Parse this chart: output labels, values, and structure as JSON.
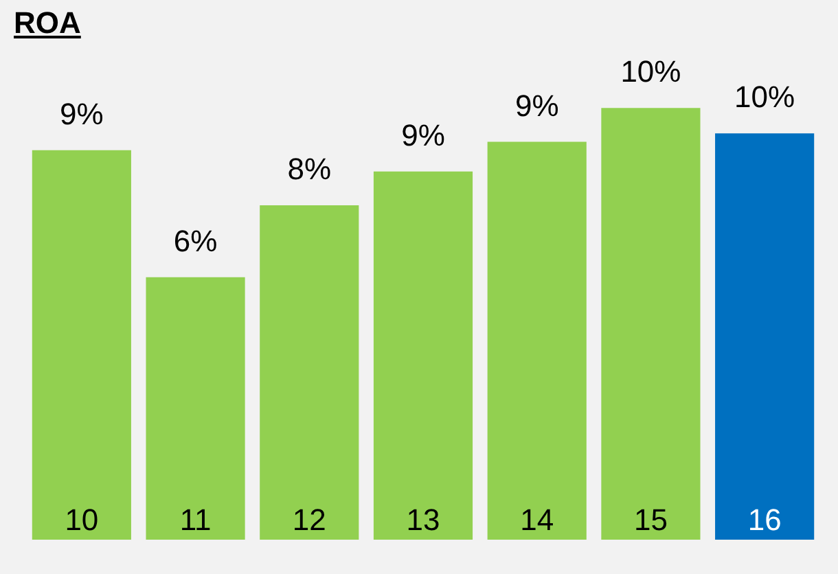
{
  "chart_data": {
    "type": "bar",
    "title": "ROA",
    "categories": [
      "10",
      "11",
      "12",
      "13",
      "14",
      "15",
      "16"
    ],
    "values": [
      9.2,
      6.2,
      7.9,
      8.7,
      9.4,
      10.2,
      9.6
    ],
    "value_labels": [
      "9%",
      "6%",
      "8%",
      "9%",
      "9%",
      "10%",
      "10%"
    ],
    "colors": [
      "#92d050",
      "#92d050",
      "#92d050",
      "#92d050",
      "#92d050",
      "#92d050",
      "#0070c0"
    ],
    "legend": false
  }
}
